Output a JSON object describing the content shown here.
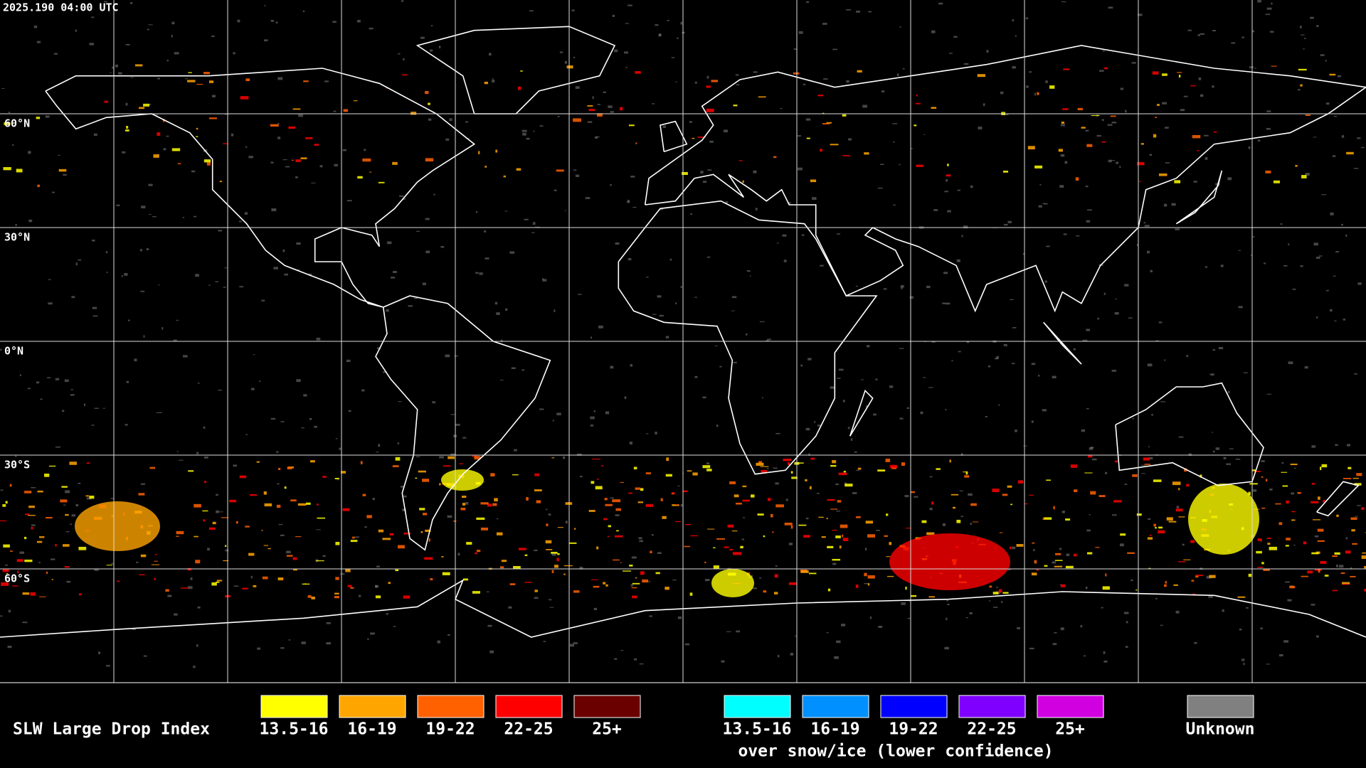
{
  "map": {
    "timestamp": "2025.190 04:00 UTC",
    "latitude_labels": [
      "60°N",
      "30°N",
      "0°N",
      "30°S",
      "60°S"
    ]
  },
  "legend": {
    "title": "SLW Large Drop Index",
    "groups": [
      {
        "items": [
          {
            "label": "13.5-16",
            "color": "#ffff00"
          },
          {
            "label": "16-19",
            "color": "#ffa500"
          },
          {
            "label": "19-22",
            "color": "#ff6000"
          },
          {
            "label": "22-25",
            "color": "#ff0000"
          },
          {
            "label": "25+",
            "color": "#6a0000"
          }
        ]
      },
      {
        "note": "over snow/ice (lower confidence)",
        "items": [
          {
            "label": "13.5-16",
            "color": "#00ffff"
          },
          {
            "label": "16-19",
            "color": "#0090ff"
          },
          {
            "label": "19-22",
            "color": "#0000ff"
          },
          {
            "label": "22-25",
            "color": "#8000ff"
          },
          {
            "label": "25+",
            "color": "#d000e0"
          }
        ]
      }
    ],
    "unknown": {
      "label": "Unknown",
      "color": "#808080"
    }
  }
}
